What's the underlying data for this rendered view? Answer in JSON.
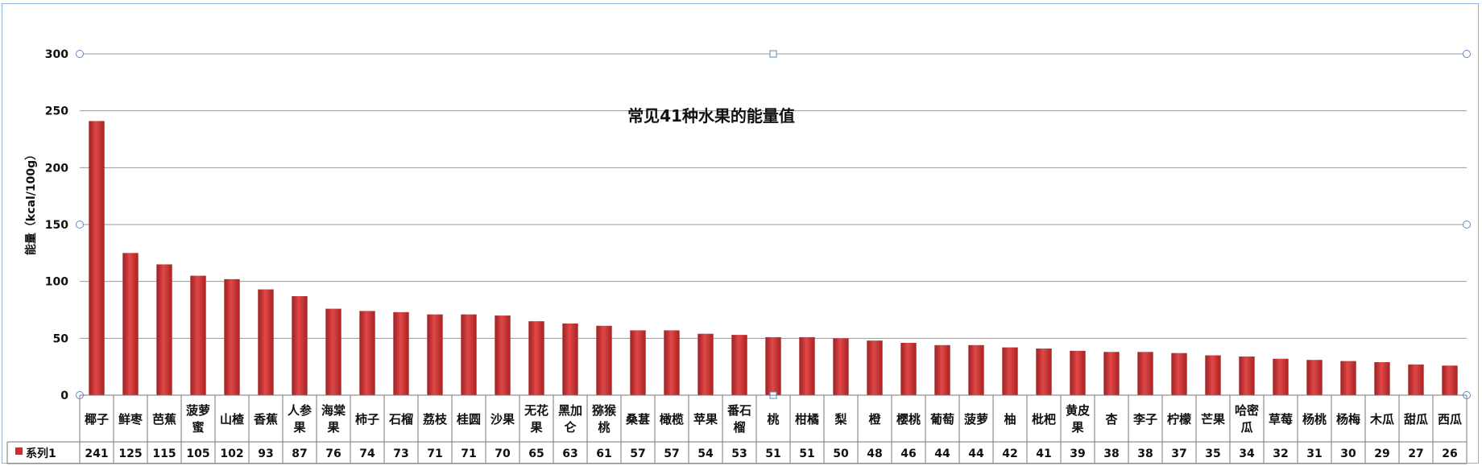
{
  "chart_data": {
    "type": "bar",
    "title": "常见41种水果的能量值",
    "ylabel": "能量（kcal/100g）",
    "xlabel": "",
    "ylim": [
      0,
      300
    ],
    "yticks": [
      0,
      50,
      100,
      150,
      200,
      250,
      300
    ],
    "grid": true,
    "legend_placement": "data-table-left",
    "bar_color": "#cc2e2e",
    "categories": [
      "椰子",
      "鲜枣",
      "芭蕉",
      "菠萝蜜",
      "山楂",
      "香蕉",
      "人参果",
      "海棠果",
      "柿子",
      "石榴",
      "荔枝",
      "桂圆",
      "沙果",
      "无花果",
      "黑加仑",
      "猕猴桃",
      "桑葚",
      "橄榄",
      "苹果",
      "番石榴",
      "桃",
      "柑橘",
      "梨",
      "橙",
      "樱桃",
      "葡萄",
      "菠萝",
      "柚",
      "枇杷",
      "黄皮果",
      "杏",
      "李子",
      "柠檬",
      "芒果",
      "哈密瓜",
      "草莓",
      "杨桃",
      "杨梅",
      "木瓜",
      "甜瓜",
      "西瓜"
    ],
    "series": [
      {
        "name": "系列1",
        "values": [
          241,
          125,
          115,
          105,
          102,
          93,
          87,
          76,
          74,
          73,
          71,
          71,
          70,
          65,
          63,
          61,
          57,
          57,
          54,
          53,
          51,
          51,
          50,
          48,
          46,
          44,
          44,
          42,
          41,
          39,
          38,
          38,
          37,
          35,
          34,
          32,
          31,
          30,
          29,
          27,
          26
        ]
      }
    ]
  }
}
